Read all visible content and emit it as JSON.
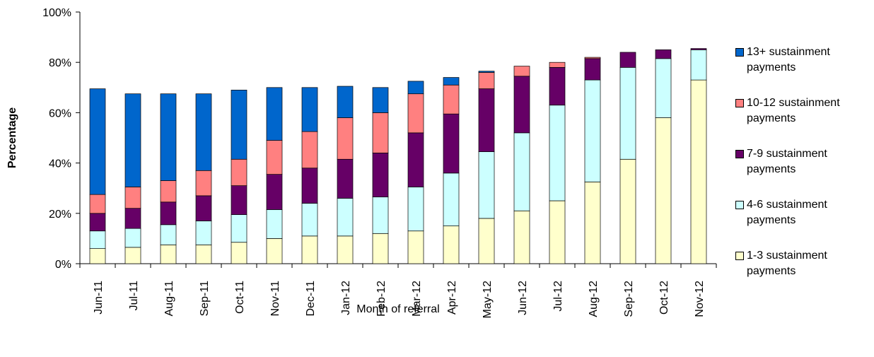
{
  "chart_data": {
    "type": "stacked_bar",
    "x_label": "Month of referral",
    "y_label": "Percentage",
    "categories": [
      "Jun-11",
      "Jul-11",
      "Aug-11",
      "Sep-11",
      "Oct-11",
      "Nov-11",
      "Dec-11",
      "Jan-12",
      "Feb-12",
      "Mar-12",
      "Apr-12",
      "May-12",
      "Jun-12",
      "Jul-12",
      "Aug-12",
      "Sep-12",
      "Oct-12",
      "Nov-12"
    ],
    "series": [
      {
        "name": "1-3 sustainment payments",
        "color": "#ffffcc",
        "values": [
          6,
          6.5,
          7.5,
          7.5,
          8.5,
          10,
          11,
          11,
          12,
          13,
          15,
          18,
          21,
          25,
          32.5,
          41.5,
          58,
          73
        ]
      },
      {
        "name": "4-6 sustainment payments",
        "color": "#ccffff",
        "values": [
          7,
          7.5,
          8,
          9.5,
          11,
          11.5,
          13,
          15,
          14.5,
          17.5,
          21,
          26.5,
          31,
          38,
          40.5,
          36.5,
          23.5,
          12
        ]
      },
      {
        "name": "7-9 sustainment payments",
        "color": "#660066",
        "values": [
          7,
          8,
          9,
          10,
          11.5,
          14,
          14,
          15.5,
          17.5,
          21.5,
          23.5,
          25,
          22.5,
          15,
          8.5,
          6,
          3.5,
          0.5
        ]
      },
      {
        "name": "10-12 sustainment payments",
        "color": "#ff8080",
        "values": [
          7.5,
          8.5,
          8.5,
          10,
          10.5,
          13.5,
          14.5,
          16.5,
          16,
          15.5,
          11.5,
          6.5,
          4,
          2,
          0.5,
          0,
          0,
          0
        ]
      },
      {
        "name": "13+ sustainment payments",
        "color": "#0066cc",
        "values": [
          42,
          37,
          34.5,
          30.5,
          27.5,
          21,
          17.5,
          12.5,
          10,
          5,
          3,
          0.5,
          0,
          0,
          0,
          0,
          0,
          0
        ]
      }
    ],
    "ylim": [
      0,
      100
    ],
    "yticks": [
      {
        "value": 0,
        "label": "0%"
      },
      {
        "value": 20,
        "label": "20%"
      },
      {
        "value": 40,
        "label": "40%"
      },
      {
        "value": 60,
        "label": "60%"
      },
      {
        "value": 80,
        "label": "80%"
      },
      {
        "value": 100,
        "label": "100%"
      }
    ],
    "legend": "right"
  }
}
